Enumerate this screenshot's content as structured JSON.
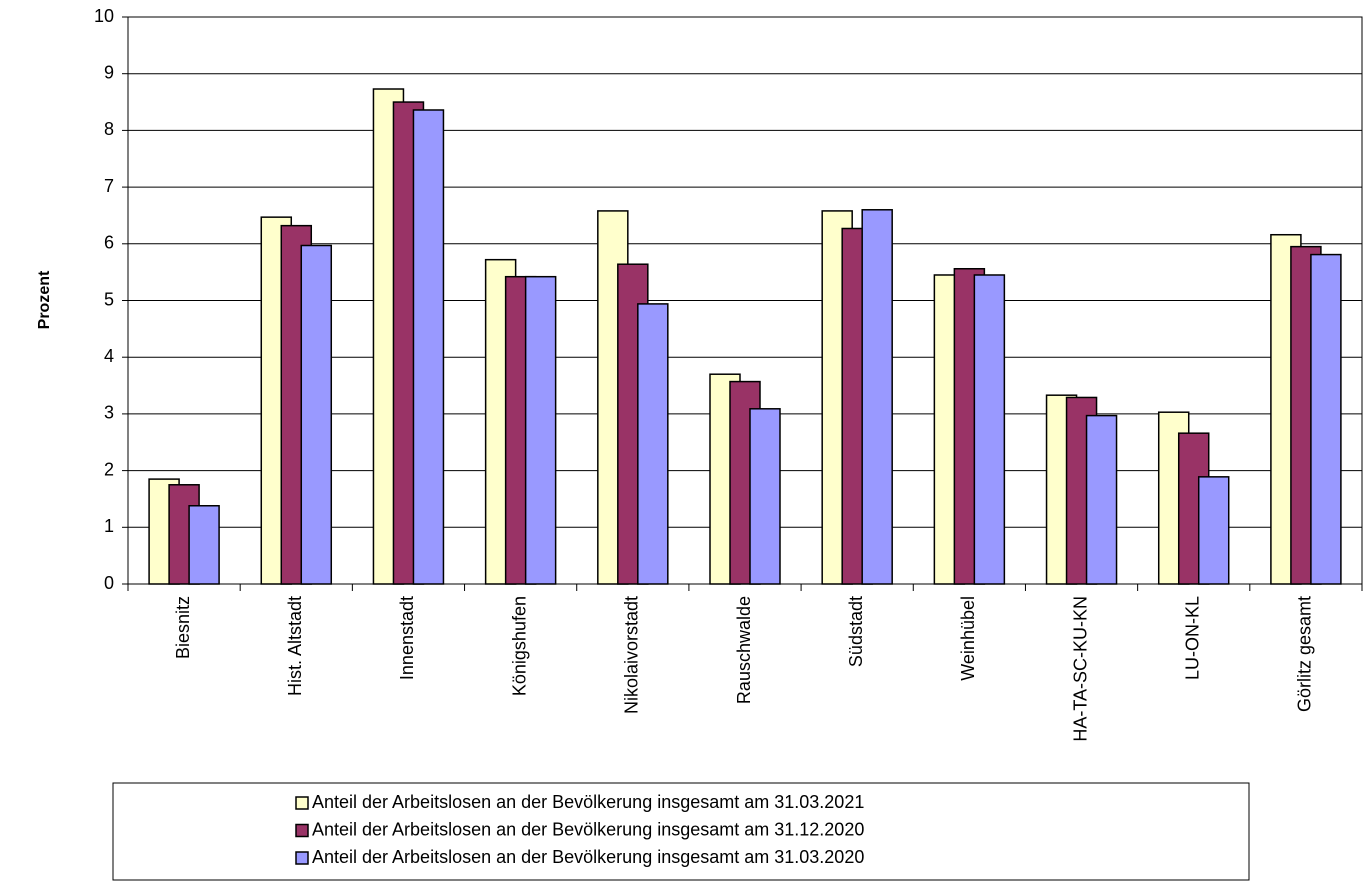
{
  "chart_data": {
    "type": "bar",
    "y_label": "Prozent",
    "categories": [
      "Biesnitz",
      "Hist. Altstadt",
      "Innenstadt",
      "Königshufen",
      "Nikolaivorstadt",
      "Rauschwalde",
      "Südstadt",
      "Weinhübel",
      "HA-TA-SC-KU-KN",
      "LU-ON-KL",
      "Görlitz gesamt"
    ],
    "series": [
      {
        "name": "Anteil der Arbeitslosen an der Bevölkerung insgesamt am 31.03.2021",
        "color": "#ffffcc",
        "values": [
          1.85,
          6.47,
          8.73,
          5.72,
          6.58,
          3.7,
          6.58,
          5.45,
          3.33,
          3.03,
          6.16
        ]
      },
      {
        "name": "Anteil der Arbeitslosen an der Bevölkerung insgesamt am 31.12.2020",
        "color": "#993366",
        "values": [
          1.75,
          6.32,
          8.5,
          5.42,
          5.64,
          3.57,
          6.27,
          5.56,
          3.29,
          2.66,
          5.95
        ]
      },
      {
        "name": "Anteil der Arbeitslosen an der Bevölkerung insgesamt am 31.03.2020",
        "color": "#9999ff",
        "values": [
          1.38,
          5.97,
          8.36,
          5.42,
          4.94,
          3.09,
          6.6,
          5.45,
          2.97,
          1.89,
          5.81
        ]
      }
    ],
    "ylim": [
      0,
      10
    ],
    "yticks": [
      0,
      1,
      2,
      3,
      4,
      5,
      6,
      7,
      8,
      9,
      10
    ],
    "grid": true
  }
}
